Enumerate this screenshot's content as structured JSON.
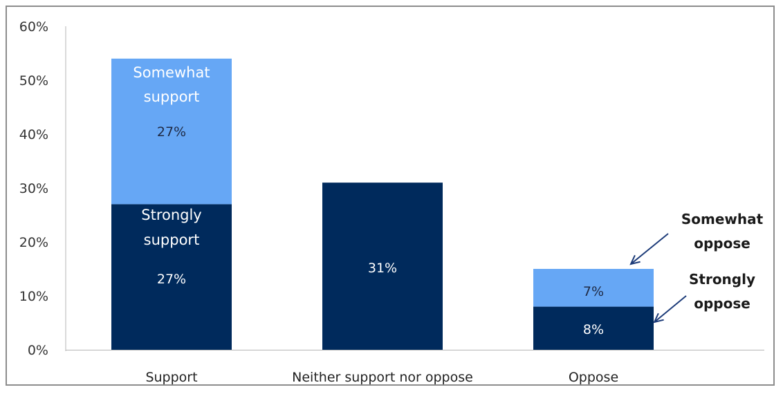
{
  "chart_data": {
    "type": "bar",
    "stacked": true,
    "categories": [
      "Support",
      "Neither support nor oppose",
      "Oppose"
    ],
    "series": [
      {
        "values": [
          27,
          31,
          8
        ],
        "color": "#002a5c"
      },
      {
        "values": [
          27,
          0,
          7
        ],
        "color": "#66a7f5"
      }
    ],
    "ylim": [
      0,
      60
    ],
    "yticks": [
      "0%",
      "10%",
      "20%",
      "30%",
      "40%",
      "50%",
      "60%"
    ],
    "yticks_values": [
      0,
      10,
      20,
      30,
      40,
      50,
      60
    ],
    "value_labels": [
      [
        "27%",
        "31%",
        "8%"
      ],
      [
        "27%",
        "",
        "7%"
      ]
    ],
    "inside_labels": {
      "strongly_support": [
        "Strongly",
        "support"
      ],
      "somewhat_support": [
        "Somewhat",
        "support"
      ]
    },
    "annotations": {
      "somewhat_oppose": [
        "Somewhat",
        "oppose"
      ],
      "strongly_oppose": [
        "Strongly",
        "oppose"
      ]
    },
    "grid": false,
    "legend": "none"
  }
}
